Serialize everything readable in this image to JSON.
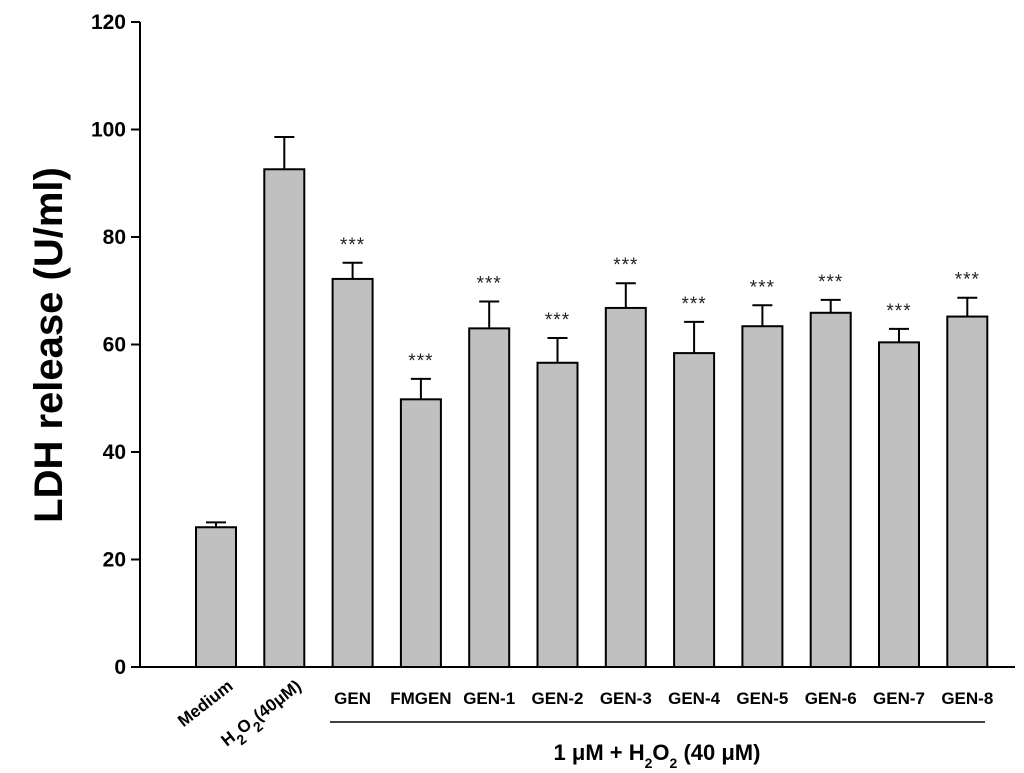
{
  "chart_data": {
    "type": "bar",
    "ylabel": "LDH release (U/ml)",
    "ylim": [
      0,
      120
    ],
    "yticks": [
      0,
      20,
      40,
      60,
      80,
      100,
      120
    ],
    "categories": [
      "Medium",
      "H2O2(40μM)",
      "GEN",
      "FMGEN",
      "GEN-1",
      "GEN-2",
      "GEN-3",
      "GEN-4",
      "GEN-5",
      "GEN-6",
      "GEN-7",
      "GEN-8"
    ],
    "values": [
      26,
      92.6,
      72.2,
      49.8,
      63,
      56.6,
      66.8,
      58.4,
      63.4,
      65.9,
      60.4,
      65.2
    ],
    "errors": [
      0.9,
      6,
      3,
      3.8,
      5,
      4.6,
      4.6,
      5.8,
      3.9,
      2.4,
      2.5,
      3.5
    ],
    "significance": [
      "",
      "",
      "***",
      "***",
      "***",
      "***",
      "***",
      "***",
      "***",
      "***",
      "***",
      "***"
    ],
    "group_label": "1 μM + H2O2 (40 μM)",
    "bar_color": "#c0c0c0",
    "grid": false
  }
}
